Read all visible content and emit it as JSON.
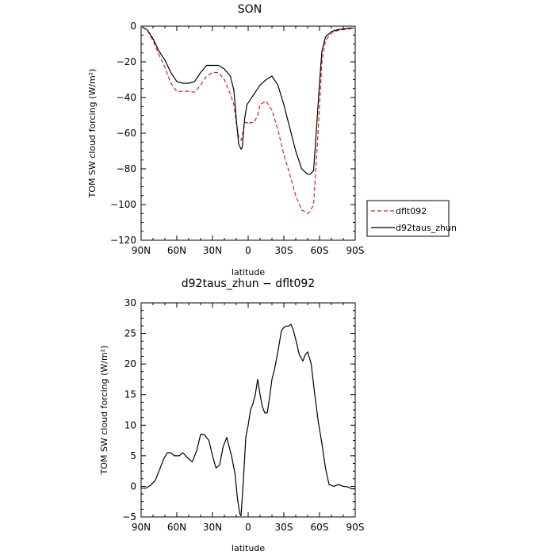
{
  "chart_data": [
    {
      "type": "line",
      "title": "SON",
      "xlabel": "latitude",
      "ylabel": "TOM SW cloud forcing (W/m²)",
      "xlim": [
        90,
        -90
      ],
      "ylim": [
        -120,
        0
      ],
      "xticks": [
        90,
        60,
        30,
        0,
        -30,
        -60,
        -90
      ],
      "xtick_labels": [
        "90N",
        "60N",
        "30N",
        "0",
        "30S",
        "60S",
        "90S"
      ],
      "yticks": [
        0,
        -20,
        -40,
        -60,
        -80,
        -100,
        -120
      ],
      "ytick_labels": [
        "0",
        "−20",
        "−40",
        "−60",
        "−80",
        "−100",
        "−120"
      ],
      "legend": {
        "placement": "right, outside"
      },
      "x": [
        89,
        85,
        80,
        75,
        70,
        65,
        60,
        55,
        50,
        45,
        40,
        35,
        30,
        25,
        20,
        15,
        12,
        10,
        8,
        6,
        5,
        3,
        1,
        0,
        -2,
        -5,
        -8,
        -10,
        -15,
        -20,
        -25,
        -30,
        -35,
        -40,
        -45,
        -50,
        -52,
        -55,
        -57,
        -60,
        -62,
        -65,
        -70,
        -75,
        -80,
        -85,
        -89
      ],
      "series": [
        {
          "name": "dflt092",
          "color": "#e41a1c",
          "dash": "dashed",
          "values": [
            -0.5,
            -2,
            -8,
            -16,
            -23,
            -32,
            -36.5,
            -36.5,
            -36.5,
            -37,
            -33,
            -28,
            -26,
            -26,
            -30,
            -38,
            -44,
            -54,
            -62,
            -64,
            -62,
            -54,
            -54,
            -55,
            -54,
            -54,
            -50,
            -44,
            -42,
            -47,
            -58,
            -72,
            -83,
            -95,
            -103,
            -105,
            -104,
            -100,
            -80,
            -45,
            -20,
            -8,
            -4,
            -2.5,
            -2,
            -1.5,
            -1
          ]
        },
        {
          "name": "d92taus_zhun",
          "color": "#000000",
          "dash": "solid",
          "values": [
            -0.5,
            -2,
            -7,
            -14,
            -19,
            -26,
            -31,
            -32,
            -32,
            -31,
            -26,
            -22,
            -22,
            -22,
            -24,
            -28,
            -36,
            -52,
            -66,
            -69,
            -68,
            -52,
            -44,
            -43,
            -41,
            -38,
            -35,
            -33,
            -30,
            -28,
            -33,
            -44,
            -57,
            -70,
            -80,
            -83,
            -83,
            -81,
            -62,
            -32,
            -14,
            -6,
            -3,
            -2,
            -1.5,
            -1,
            -1
          ]
        }
      ]
    },
    {
      "type": "line",
      "title": "d92taus_zhun − dflt092",
      "xlabel": "latitude",
      "ylabel": "TOM SW cloud forcing (W/m²)",
      "xlim": [
        90,
        -90
      ],
      "ylim": [
        -5,
        30
      ],
      "xticks": [
        90,
        60,
        30,
        0,
        -30,
        -60,
        -90
      ],
      "xtick_labels": [
        "90N",
        "60N",
        "30N",
        "0",
        "30S",
        "60S",
        "90S"
      ],
      "yticks": [
        30,
        25,
        20,
        15,
        10,
        5,
        0,
        -5
      ],
      "ytick_labels": [
        "30",
        "25",
        "20",
        "15",
        "10",
        "5",
        "0",
        "−5"
      ],
      "x": [
        90,
        86,
        82,
        78,
        74,
        71,
        68,
        65,
        62,
        58,
        55,
        50,
        47,
        43,
        40,
        37,
        33,
        30,
        27,
        24,
        21,
        18,
        14,
        11,
        9,
        7,
        6,
        4,
        2,
        0,
        -2,
        -4,
        -6,
        -8,
        -10,
        -12,
        -14,
        -16,
        -18,
        -20,
        -22,
        -25,
        -28,
        -30,
        -32,
        -34,
        -36,
        -38,
        -40,
        -43,
        -46,
        -48,
        -50,
        -53,
        -56,
        -59,
        -62,
        -65,
        -68,
        -72,
        -76,
        -80,
        -84,
        -87,
        -90
      ],
      "series": [
        {
          "name": "",
          "color": "#000000",
          "dash": "solid",
          "values": [
            -0.3,
            -0.3,
            0.2,
            1,
            3,
            4.5,
            5.5,
            5.5,
            5,
            5,
            5.5,
            4.5,
            4,
            6,
            8.5,
            8.5,
            7.5,
            5,
            3,
            3.5,
            6.5,
            8,
            5,
            2,
            -2,
            -4.5,
            -4.8,
            1,
            8,
            10,
            12.5,
            13.5,
            15,
            17.5,
            15,
            13,
            12,
            12,
            14.5,
            17.5,
            19,
            22,
            25.5,
            26,
            26.2,
            26.2,
            26.5,
            25.5,
            24,
            21.5,
            20.5,
            21.5,
            22,
            20,
            15,
            10.5,
            7,
            3,
            0.3,
            0,
            0.3,
            0,
            -0.1,
            -0.4,
            -0.4
          ]
        }
      ]
    }
  ]
}
